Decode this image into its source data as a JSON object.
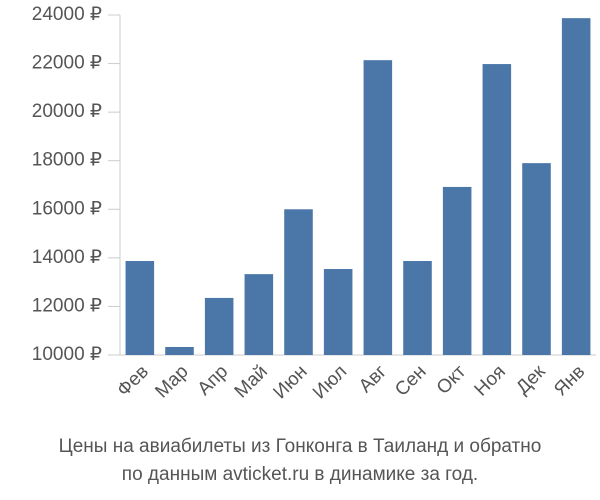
{
  "chart_data": {
    "type": "bar",
    "title": [
      "Цены на авиабилеты из Гонконга в Таиланд и обратно",
      "по данным avticket.ru в динамике за год."
    ],
    "categories": [
      "Фев",
      "Мар",
      "Апр",
      "Май",
      "Июн",
      "Июл",
      "Авг",
      "Сен",
      "Окт",
      "Ноя",
      "Дек",
      "Янв"
    ],
    "values": [
      13870,
      10330,
      12350,
      13330,
      16000,
      13540,
      22140,
      13870,
      16920,
      21980,
      17900,
      23870
    ],
    "color": "#4a76a8",
    "ylim": [
      10000,
      24000
    ],
    "yticks": [
      {
        "value": 10000,
        "label": "10000 ₽"
      },
      {
        "value": 12000,
        "label": "12000 ₽"
      },
      {
        "value": 14000,
        "label": "14000 ₽"
      },
      {
        "value": 16000,
        "label": "16000 ₽"
      },
      {
        "value": 18000,
        "label": "18000 ₽"
      },
      {
        "value": 20000,
        "label": "20000 ₽"
      },
      {
        "value": 22000,
        "label": "22000 ₽"
      },
      {
        "value": 24000,
        "label": "24000 ₽"
      }
    ],
    "grid": false
  }
}
